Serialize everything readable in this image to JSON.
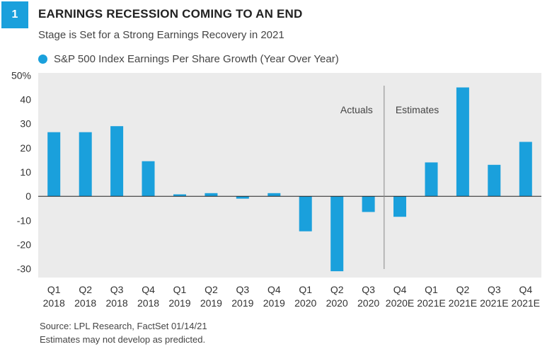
{
  "header": {
    "badge": "1",
    "title": "EARNINGS RECESSION COMING TO AN END",
    "subtitle": "Stage is Set for a Strong Earnings Recovery in 2021"
  },
  "legend": {
    "label": "S&P 500 Index Earnings Per Share Growth (Year Over Year)"
  },
  "footer": {
    "source": "Source: LPL Research, FactSet  01/14/21",
    "note": "Estimates may not develop as predicted."
  },
  "colors": {
    "bar": "#1aa0dc",
    "plot_bg": "#ebebeb"
  },
  "chart_data": {
    "type": "bar",
    "categories": [
      [
        "Q1",
        "2018"
      ],
      [
        "Q2",
        "2018"
      ],
      [
        "Q3",
        "2018"
      ],
      [
        "Q4",
        "2018"
      ],
      [
        "Q1",
        "2019"
      ],
      [
        "Q2",
        "2019"
      ],
      [
        "Q3",
        "2019"
      ],
      [
        "Q4",
        "2019"
      ],
      [
        "Q1",
        "2020"
      ],
      [
        "Q2",
        "2020"
      ],
      [
        "Q3",
        "2020"
      ],
      [
        "Q4",
        "2020E"
      ],
      [
        "Q1",
        "2021E"
      ],
      [
        "Q2",
        "2021E"
      ],
      [
        "Q3",
        "2021E"
      ],
      [
        "Q4",
        "2021E"
      ]
    ],
    "values": [
      26.5,
      26.5,
      29.0,
      14.5,
      0.8,
      1.3,
      -1.0,
      1.3,
      -14.5,
      -31.0,
      -6.5,
      -8.5,
      14.0,
      45.0,
      13.0,
      22.5
    ],
    "ylim": [
      -30,
      50
    ],
    "yticks": [
      "50%",
      "40",
      "30",
      "20",
      "10",
      "0",
      "-10",
      "-20",
      "-30"
    ],
    "ytick_values": [
      50,
      40,
      30,
      20,
      10,
      0,
      -10,
      -20,
      -30
    ],
    "annotations": {
      "actuals": "Actuals",
      "estimates": "Estimates",
      "divider_after_index": 10
    },
    "grid": false
  }
}
